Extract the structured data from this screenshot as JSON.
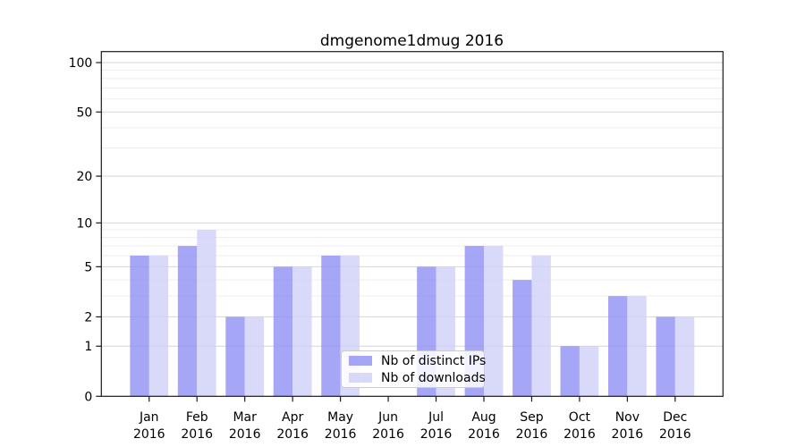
{
  "chart_data": {
    "type": "bar",
    "title": "dmgenome1dmug 2016",
    "categories": [
      "Jan",
      "Feb",
      "Mar",
      "Apr",
      "May",
      "Jun",
      "Jul",
      "Aug",
      "Sep",
      "Oct",
      "Nov",
      "Dec"
    ],
    "x_tick_year": "2016",
    "series": [
      {
        "name": "Nb of distinct IPs",
        "color": "#9090f4",
        "opacity": 0.8,
        "values": [
          6,
          7,
          2,
          5,
          6,
          0,
          5,
          7,
          4,
          1,
          3,
          2
        ]
      },
      {
        "name": "Nb of downloads",
        "color": "#cfcff9",
        "opacity": 0.8,
        "values": [
          6,
          9,
          2,
          5,
          6,
          0,
          5,
          7,
          6,
          1,
          3,
          2
        ]
      }
    ],
    "y_axis": {
      "scale": "log1p",
      "major_ticks": [
        0,
        1,
        2,
        5,
        10,
        20,
        50,
        100
      ],
      "minor_ticks": [
        3,
        4,
        6,
        7,
        8,
        9,
        30,
        40,
        60,
        70,
        80,
        90
      ],
      "ylim": [
        0,
        116
      ]
    },
    "legend_position": "lower center",
    "grid": true,
    "colors": {
      "major_grid": "#d6d6d6",
      "minor_grid": "#ededed",
      "axis": "#1a1a1a",
      "legend_border": "#cccccc"
    }
  }
}
